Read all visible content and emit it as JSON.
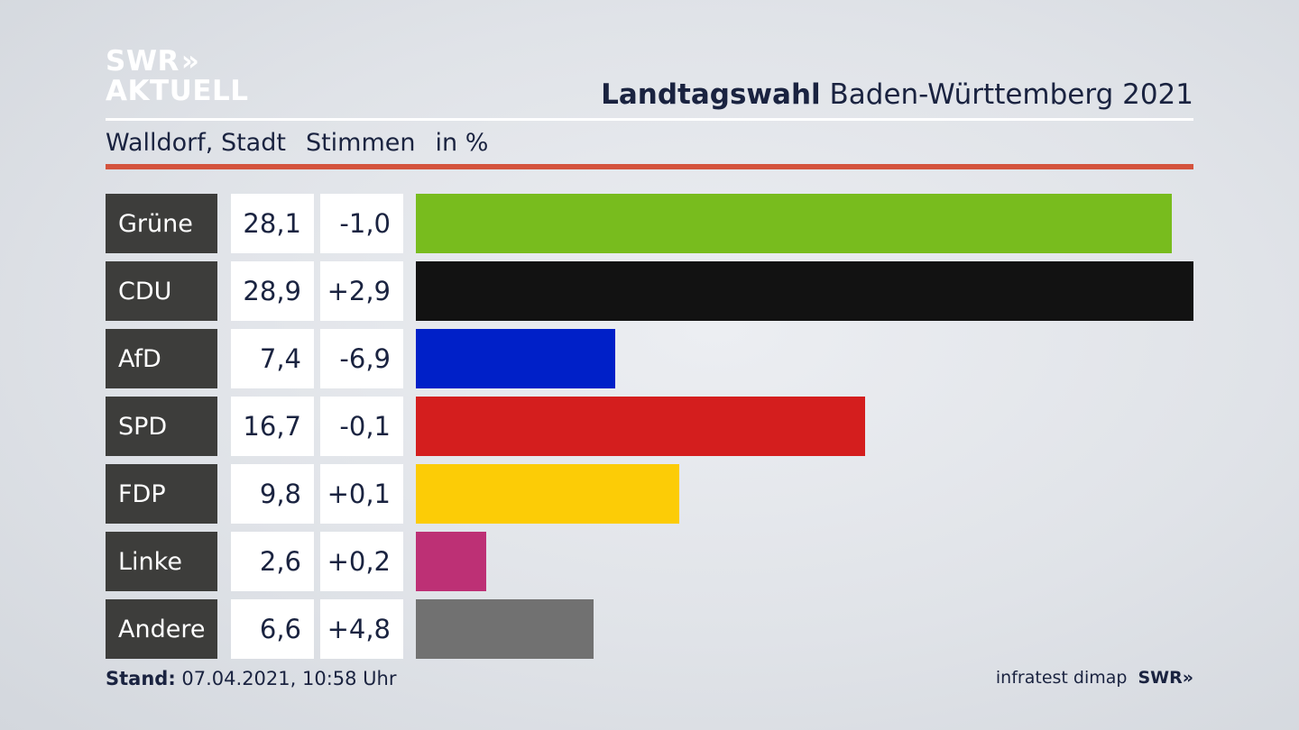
{
  "logo": {
    "line1": "SWR",
    "chevrons": "»",
    "line2": "AKTUELL"
  },
  "title": {
    "bold": "Landtagswahl",
    "rest": " Baden-Württemberg 2021"
  },
  "subtitle": {
    "place": "Walldorf, Stadt",
    "measure": "Stimmen",
    "unit": "in %"
  },
  "colors": {
    "accent_rule": "#d4533d",
    "party_box": "#3d3d3b"
  },
  "chart_data": {
    "type": "bar",
    "orientation": "horizontal",
    "categories": [
      "Grüne",
      "CDU",
      "AfD",
      "SPD",
      "FDP",
      "Linke",
      "Andere"
    ],
    "values": [
      28.1,
      28.9,
      7.4,
      16.7,
      9.8,
      2.6,
      6.6
    ],
    "value_labels": [
      "28,1",
      "28,9",
      "7,4",
      "16,7",
      "9,8",
      "2,6",
      "6,6"
    ],
    "changes": [
      -1.0,
      2.9,
      -6.9,
      -0.1,
      0.1,
      0.2,
      4.8
    ],
    "change_labels": [
      "-1,0",
      "+2,9",
      "-6,9",
      "-0,1",
      "+0,1",
      "+0,2",
      "+4,8"
    ],
    "bar_colors": [
      "#78bc1e",
      "#121212",
      "#0020c8",
      "#d41e1e",
      "#fccc06",
      "#bd3075",
      "#717171"
    ],
    "xlim": [
      0,
      28.9
    ],
    "grid": false,
    "legend": "none"
  },
  "footer": {
    "stand_label": "Stand:",
    "stand_value": " 07.04.2021, 10:58 Uhr",
    "source": "infratest dimap",
    "brand": "SWR»"
  }
}
